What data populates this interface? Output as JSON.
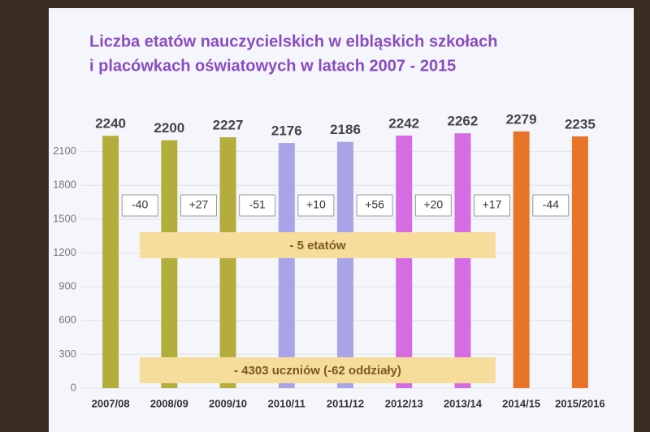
{
  "chart_data": {
    "type": "bar",
    "title": [
      "Liczba etatów nauczycielskich  w elbląskich szkołach",
      "i placówkach oświatowych    w latach 2007 - 2015"
    ],
    "categories": [
      "2007/08",
      "2008/09",
      "2009/10",
      "2010/11",
      "2011/12",
      "2012/13",
      "2013/14",
      "2014/15",
      "2015/2016"
    ],
    "values": [
      2240,
      2200,
      2227,
      2176,
      2186,
      2242,
      2262,
      2279,
      2235
    ],
    "colors": [
      "#b3ad3c",
      "#b3ad3c",
      "#b3ad3c",
      "#a9a4ea",
      "#a9a4ea",
      "#d56ce3",
      "#d56ce3",
      "#e8742a",
      "#e8742a"
    ],
    "changes": [
      "-40",
      "+27",
      "-51",
      "+10",
      "+56",
      "+20",
      "+17",
      "-44"
    ],
    "notes": [
      "- 5 etatów",
      "- 4303 uczniów (-62 oddziały)"
    ],
    "ylim": [
      0,
      2400
    ],
    "yticks": [
      0,
      300,
      600,
      900,
      1200,
      1500,
      1800,
      2100
    ],
    "grid": true
  }
}
